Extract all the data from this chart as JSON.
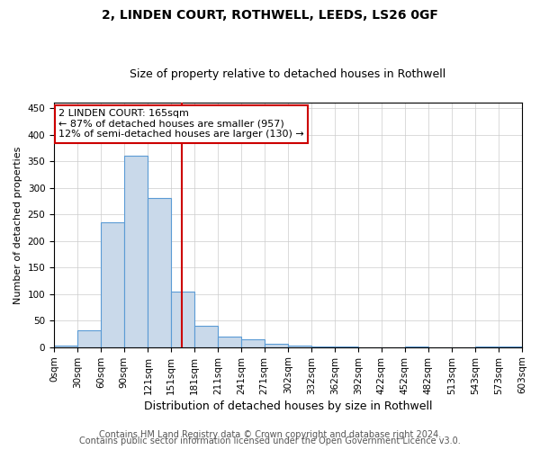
{
  "title1": "2, LINDEN COURT, ROTHWELL, LEEDS, LS26 0GF",
  "title2": "Size of property relative to detached houses in Rothwell",
  "xlabel": "Distribution of detached houses by size in Rothwell",
  "ylabel": "Number of detached properties",
  "bin_edges": [
    0,
    30,
    60,
    90,
    121,
    151,
    181,
    211,
    241,
    271,
    302,
    332,
    362,
    392,
    422,
    452,
    482,
    513,
    543,
    573,
    603
  ],
  "counts": [
    3,
    32,
    235,
    360,
    280,
    105,
    40,
    20,
    15,
    6,
    3,
    2,
    2,
    0,
    0,
    2,
    0,
    0,
    2,
    2
  ],
  "bar_facecolor": "#c9d9ea",
  "bar_edgecolor": "#5b9bd5",
  "vline_x": 165,
  "vline_color": "#cc0000",
  "annotation_line1": "2 LINDEN COURT: 165sqm",
  "annotation_line2": "← 87% of detached houses are smaller (957)",
  "annotation_line3": "12% of semi-detached houses are larger (130) →",
  "annotation_box_color": "#ffffff",
  "annotation_box_edgecolor": "#cc0000",
  "yticks": [
    0,
    50,
    100,
    150,
    200,
    250,
    300,
    350,
    400,
    450
  ],
  "ylim": [
    0,
    460
  ],
  "footer1": "Contains HM Land Registry data © Crown copyright and database right 2024.",
  "footer2": "Contains public sector information licensed under the Open Government Licence v3.0.",
  "background_color": "#ffffff",
  "grid_color": "#cccccc",
  "title1_fontsize": 10,
  "title2_fontsize": 9,
  "xlabel_fontsize": 9,
  "ylabel_fontsize": 8,
  "tick_fontsize": 7.5,
  "annotation_fontsize": 8,
  "footer_fontsize": 7
}
